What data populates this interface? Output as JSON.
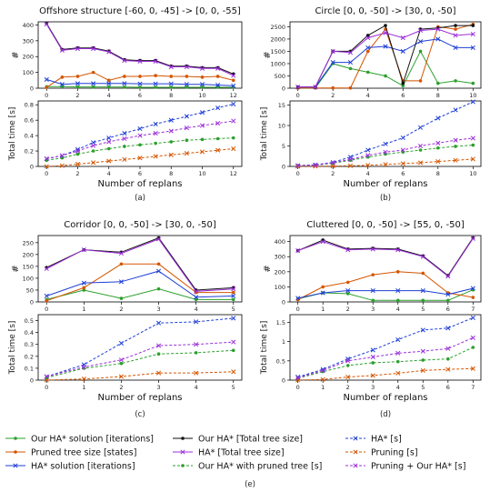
{
  "figure": {
    "legend": [
      {
        "label": "Our HA* solution [iterations]",
        "color": "#2ca02c",
        "dash": "solid",
        "marker": "dot"
      },
      {
        "label": "Pruned tree size [states]",
        "color": "#d45500",
        "dash": "solid",
        "marker": "dot"
      },
      {
        "label": "HA* solution [iterations]",
        "color": "#1f3fd6",
        "dash": "solid",
        "marker": "x"
      },
      {
        "label": "Our HA* [Total tree size]",
        "color": "#111111",
        "dash": "solid",
        "marker": "dot"
      },
      {
        "label": "HA* [Total tree size]",
        "color": "#9b30d9",
        "dash": "solid",
        "marker": "x"
      },
      {
        "label": "Our HA* with pruned tree [s]",
        "color": "#2ca02c",
        "dash": "dashed",
        "marker": "dot"
      },
      {
        "label": "HA* [s]",
        "color": "#1f3fd6",
        "dash": "dashed",
        "marker": "x"
      },
      {
        "label": "Pruning [s]",
        "color": "#d45500",
        "dash": "dashed",
        "marker": "x"
      },
      {
        "label": "Pruning + Our HA* [s]",
        "color": "#9b30d9",
        "dash": "dashed",
        "marker": "x"
      }
    ],
    "legend_caption": "(e)"
  },
  "chart_data": [
    {
      "type": "line",
      "title": "Offshore structure [-60, 0, -45] -> [0, 0, -55]",
      "caption": "(a)",
      "xlabel": "Number of replans",
      "x": [
        0,
        1,
        2,
        3,
        4,
        5,
        6,
        7,
        8,
        9,
        10,
        11,
        12
      ],
      "xticks": [
        0,
        2,
        4,
        6,
        8,
        10,
        12
      ],
      "top": {
        "ylabel": "#",
        "ylim": [
          0,
          420
        ],
        "yticks": [
          0,
          100,
          200,
          300,
          400
        ],
        "series": [
          {
            "key": 0,
            "values": [
              10,
              10,
              8,
              8,
              8,
              7,
              6,
              6,
              6,
              6,
              6,
              6,
              6
            ]
          },
          {
            "key": 1,
            "values": [
              5,
              70,
              75,
              100,
              50,
              75,
              75,
              80,
              75,
              75,
              70,
              75,
              50
            ]
          },
          {
            "key": 2,
            "values": [
              55,
              25,
              30,
              30,
              30,
              30,
              28,
              28,
              28,
              25,
              25,
              20,
              15
            ]
          },
          {
            "key": 3,
            "values": [
              410,
              245,
              255,
              255,
              235,
              180,
              175,
              175,
              140,
              140,
              130,
              130,
              90
            ]
          },
          {
            "key": 4,
            "values": [
              405,
              240,
              250,
              250,
              230,
              175,
              170,
              170,
              135,
              135,
              125,
              125,
              80
            ]
          }
        ]
      },
      "bottom": {
        "ylabel": "Total time [s]",
        "ylim": [
          0,
          0.85
        ],
        "yticks": [
          0,
          0.2,
          0.4,
          0.6,
          0.8
        ],
        "series": [
          {
            "key": 5,
            "values": [
              0.08,
              0.11,
              0.16,
              0.2,
              0.23,
              0.26,
              0.28,
              0.3,
              0.32,
              0.34,
              0.35,
              0.36,
              0.37
            ]
          },
          {
            "key": 6,
            "values": [
              0.1,
              0.14,
              0.22,
              0.31,
              0.37,
              0.43,
              0.49,
              0.55,
              0.6,
              0.65,
              0.7,
              0.76,
              0.81
            ]
          },
          {
            "key": 7,
            "values": [
              0.0,
              0.01,
              0.03,
              0.05,
              0.07,
              0.09,
              0.11,
              0.13,
              0.15,
              0.17,
              0.19,
              0.21,
              0.23
            ]
          },
          {
            "key": 8,
            "values": [
              0.1,
              0.14,
              0.2,
              0.27,
              0.32,
              0.36,
              0.4,
              0.43,
              0.46,
              0.5,
              0.53,
              0.56,
              0.59
            ]
          }
        ]
      }
    },
    {
      "type": "line",
      "title": "Circle [0, 0, -50] -> [30, 0, -50]",
      "caption": "(b)",
      "xlabel": "Number of replans",
      "x": [
        0,
        1,
        2,
        3,
        4,
        5,
        6,
        7,
        8,
        9,
        10
      ],
      "xticks": [
        0,
        2,
        4,
        6,
        8,
        10
      ],
      "top": {
        "ylabel": "#",
        "ylim": [
          0,
          2700
        ],
        "yticks": [
          0,
          500,
          1000,
          1500,
          2000,
          2500
        ],
        "series": [
          {
            "key": 0,
            "values": [
              10,
              10,
              1000,
              800,
              650,
              500,
              100,
              1500,
              200,
              300,
              200
            ]
          },
          {
            "key": 1,
            "values": [
              10,
              10,
              10,
              10,
              1500,
              2400,
              300,
              300,
              2500,
              2400,
              2600
            ]
          },
          {
            "key": 2,
            "values": [
              50,
              50,
              1050,
              1050,
              1650,
              1700,
              1500,
              1900,
              2000,
              1650,
              1650
            ]
          },
          {
            "key": 3,
            "values": [
              50,
              50,
              1500,
              1500,
              2150,
              2550,
              200,
              2400,
              2450,
              2550,
              2550
            ]
          },
          {
            "key": 4,
            "values": [
              50,
              50,
              1500,
              1450,
              2050,
              2250,
              2050,
              2350,
              2400,
              2150,
              2200
            ]
          }
        ]
      },
      "bottom": {
        "ylabel": "Total time [s]",
        "ylim": [
          0,
          16
        ],
        "yticks": [
          0,
          5,
          10,
          15
        ],
        "series": [
          {
            "key": 5,
            "values": [
              0.2,
              0.3,
              0.8,
              1.5,
              2.3,
              3.0,
              3.5,
              4.0,
              4.5,
              4.9,
              5.2
            ]
          },
          {
            "key": 6,
            "values": [
              0.2,
              0.4,
              1.0,
              2.3,
              4.0,
              5.5,
              7.0,
              9.5,
              11.8,
              13.8,
              15.8
            ]
          },
          {
            "key": 7,
            "values": [
              0.0,
              0.05,
              0.1,
              0.15,
              0.3,
              0.5,
              0.7,
              0.9,
              1.2,
              1.5,
              1.8
            ]
          },
          {
            "key": 8,
            "values": [
              0.2,
              0.3,
              0.9,
              1.7,
              2.7,
              3.5,
              4.0,
              5.0,
              5.7,
              6.4,
              6.9
            ]
          }
        ]
      }
    },
    {
      "type": "line",
      "title": "Corridor [0, 0, -50] -> [30, 0, -50]",
      "caption": "(c)",
      "xlabel": "Number of replans",
      "x": [
        0,
        1,
        2,
        3,
        4,
        5
      ],
      "xticks": [
        0,
        1,
        2,
        3,
        4,
        5
      ],
      "top": {
        "ylabel": "#",
        "ylim": [
          0,
          280
        ],
        "yticks": [
          0,
          50,
          100,
          150,
          200,
          250
        ],
        "series": [
          {
            "key": 0,
            "values": [
              10,
              50,
              15,
              55,
              10,
              10
            ]
          },
          {
            "key": 1,
            "values": [
              5,
              60,
              160,
              160,
              40,
              40
            ]
          },
          {
            "key": 2,
            "values": [
              25,
              80,
              85,
              130,
              20,
              25
            ]
          },
          {
            "key": 3,
            "values": [
              145,
              220,
              210,
              270,
              50,
              60
            ]
          },
          {
            "key": 4,
            "values": [
              140,
              220,
              205,
              265,
              45,
              55
            ]
          }
        ]
      },
      "bottom": {
        "ylabel": "Total time [s]",
        "ylim": [
          0,
          0.55
        ],
        "yticks": [
          0,
          0.1,
          0.2,
          0.3,
          0.4,
          0.5
        ],
        "series": [
          {
            "key": 5,
            "values": [
              0.02,
              0.1,
              0.14,
              0.22,
              0.23,
              0.25
            ]
          },
          {
            "key": 6,
            "values": [
              0.03,
              0.13,
              0.31,
              0.48,
              0.49,
              0.52
            ]
          },
          {
            "key": 7,
            "values": [
              0.0,
              0.01,
              0.03,
              0.06,
              0.06,
              0.07
            ]
          },
          {
            "key": 8,
            "values": [
              0.03,
              0.11,
              0.17,
              0.29,
              0.3,
              0.32
            ]
          }
        ]
      }
    },
    {
      "type": "line",
      "title": "Cluttered [0, 0, -50] -> [55, 0, -50]",
      "caption": "(d)",
      "xlabel": "Number of replans",
      "x": [
        0,
        1,
        2,
        3,
        4,
        5,
        6,
        7
      ],
      "xticks": [
        0,
        1,
        2,
        3,
        4,
        5,
        6,
        7
      ],
      "top": {
        "ylabel": "#",
        "ylim": [
          0,
          440
        ],
        "yticks": [
          0,
          100,
          200,
          300,
          400
        ],
        "series": [
          {
            "key": 0,
            "values": [
              20,
              60,
              55,
              10,
              10,
              10,
              10,
              80
            ]
          },
          {
            "key": 1,
            "values": [
              15,
              100,
              130,
              180,
              200,
              190,
              60,
              30
            ]
          },
          {
            "key": 2,
            "values": [
              25,
              60,
              75,
              75,
              75,
              75,
              50,
              90
            ]
          },
          {
            "key": 3,
            "values": [
              340,
              410,
              350,
              355,
              350,
              305,
              175,
              425
            ]
          },
          {
            "key": 4,
            "values": [
              340,
              400,
              345,
              350,
              345,
              300,
              170,
              420
            ]
          }
        ]
      },
      "bottom": {
        "ylabel": "Total time [s]",
        "ylim": [
          0,
          1.7
        ],
        "yticks": [
          0,
          0.5,
          1.0,
          1.5
        ],
        "series": [
          {
            "key": 5,
            "values": [
              0.05,
              0.22,
              0.38,
              0.45,
              0.48,
              0.52,
              0.55,
              0.85
            ]
          },
          {
            "key": 6,
            "values": [
              0.08,
              0.28,
              0.55,
              0.78,
              1.05,
              1.3,
              1.35,
              1.62
            ]
          },
          {
            "key": 7,
            "values": [
              0.0,
              0.02,
              0.08,
              0.12,
              0.18,
              0.25,
              0.28,
              0.3
            ]
          },
          {
            "key": 8,
            "values": [
              0.06,
              0.25,
              0.5,
              0.6,
              0.7,
              0.75,
              0.82,
              1.1
            ]
          }
        ]
      }
    }
  ]
}
